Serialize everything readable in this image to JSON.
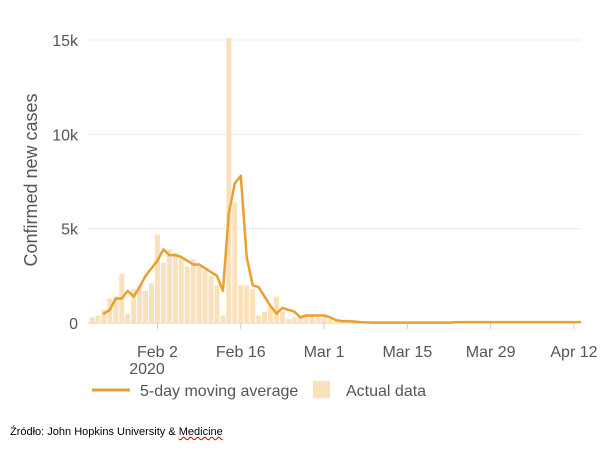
{
  "chart_data": {
    "type": "bar+line",
    "ylabel": "Confirmed new cases",
    "ylim": [
      0,
      15000
    ],
    "y_ticks": [
      0,
      5000,
      10000,
      15000
    ],
    "y_tick_labels": [
      "0",
      "5k",
      "10k",
      "15k"
    ],
    "x_start_date": "2020-01-22",
    "x_tick_labels": [
      "Feb 2",
      "Feb 16",
      "Mar 1",
      "Mar 15",
      "Mar 29",
      "Apr 12"
    ],
    "x_tick_dates": [
      "2020-02-02",
      "2020-02-16",
      "2020-03-01",
      "2020-03-15",
      "2020-03-29",
      "2020-04-12"
    ],
    "x_year_label": "2020",
    "grid": true,
    "legend_position": "bottom-left",
    "bar_color": "#fbe0bc",
    "line_color": "#e8a030",
    "series": [
      {
        "name": "Actual data",
        "kind": "bar",
        "dates": [
          "2020-01-22",
          "2020-01-23",
          "2020-01-24",
          "2020-01-25",
          "2020-01-26",
          "2020-01-27",
          "2020-01-28",
          "2020-01-29",
          "2020-01-30",
          "2020-01-31",
          "2020-02-01",
          "2020-02-02",
          "2020-02-03",
          "2020-02-04",
          "2020-02-05",
          "2020-02-06",
          "2020-02-07",
          "2020-02-08",
          "2020-02-09",
          "2020-02-10",
          "2020-02-11",
          "2020-02-12",
          "2020-02-13",
          "2020-02-14",
          "2020-02-15",
          "2020-02-16",
          "2020-02-17",
          "2020-02-18",
          "2020-02-19",
          "2020-02-20",
          "2020-02-21",
          "2020-02-22",
          "2020-02-23",
          "2020-02-24",
          "2020-02-25",
          "2020-02-26",
          "2020-02-27",
          "2020-02-28",
          "2020-02-29",
          "2020-03-01",
          "2020-03-02",
          "2020-03-03",
          "2020-03-04",
          "2020-03-05",
          "2020-03-06",
          "2020-03-07",
          "2020-03-08",
          "2020-03-09",
          "2020-03-10",
          "2020-03-11",
          "2020-03-12",
          "2020-03-13",
          "2020-03-14",
          "2020-03-15",
          "2020-03-16",
          "2020-03-17",
          "2020-03-18",
          "2020-03-19",
          "2020-03-20",
          "2020-03-21",
          "2020-03-22",
          "2020-03-23",
          "2020-03-24",
          "2020-03-25",
          "2020-03-26",
          "2020-03-27",
          "2020-03-28",
          "2020-03-29",
          "2020-03-30",
          "2020-03-31",
          "2020-04-01",
          "2020-04-02",
          "2020-04-03",
          "2020-04-04",
          "2020-04-05",
          "2020-04-06",
          "2020-04-07",
          "2020-04-08",
          "2020-04-09",
          "2020-04-10",
          "2020-04-11",
          "2020-04-12",
          "2020-04-13"
        ],
        "values": [
          300,
          400,
          700,
          1300,
          1400,
          2600,
          500,
          1800,
          2000,
          1700,
          2100,
          4700,
          3200,
          3900,
          3700,
          3500,
          3000,
          3400,
          3000,
          2800,
          2500,
          2000,
          400,
          15100,
          6400,
          2000,
          2000,
          1800,
          400,
          600,
          900,
          1400,
          600,
          200,
          300,
          400,
          400,
          400,
          300,
          300,
          200,
          100,
          100,
          100,
          50,
          50,
          50,
          20,
          20,
          20,
          20,
          20,
          20,
          20,
          20,
          20,
          20,
          20,
          20,
          20,
          20,
          50,
          50,
          50,
          50,
          50,
          50,
          50,
          50,
          50,
          50,
          50,
          50,
          50,
          50,
          50,
          50,
          50,
          50,
          50,
          50,
          50,
          50
        ]
      },
      {
        "name": "5-day moving average",
        "kind": "line",
        "dates": [
          "2020-01-22",
          "2020-01-23",
          "2020-01-24",
          "2020-01-25",
          "2020-01-26",
          "2020-01-27",
          "2020-01-28",
          "2020-01-29",
          "2020-01-30",
          "2020-01-31",
          "2020-02-01",
          "2020-02-02",
          "2020-02-03",
          "2020-02-04",
          "2020-02-05",
          "2020-02-06",
          "2020-02-07",
          "2020-02-08",
          "2020-02-09",
          "2020-02-10",
          "2020-02-11",
          "2020-02-12",
          "2020-02-13",
          "2020-02-14",
          "2020-02-15",
          "2020-02-16",
          "2020-02-17",
          "2020-02-18",
          "2020-02-19",
          "2020-02-20",
          "2020-02-21",
          "2020-02-22",
          "2020-02-23",
          "2020-02-24",
          "2020-02-25",
          "2020-02-26",
          "2020-02-27",
          "2020-02-28",
          "2020-02-29",
          "2020-03-01",
          "2020-03-02",
          "2020-03-03",
          "2020-03-04",
          "2020-03-05",
          "2020-03-06",
          "2020-03-07",
          "2020-03-08",
          "2020-03-09",
          "2020-03-10",
          "2020-03-11",
          "2020-03-12",
          "2020-03-13",
          "2020-03-14",
          "2020-03-15",
          "2020-03-16",
          "2020-03-17",
          "2020-03-18",
          "2020-03-19",
          "2020-03-20",
          "2020-03-21",
          "2020-03-22",
          "2020-03-23",
          "2020-03-24",
          "2020-03-25",
          "2020-03-26",
          "2020-03-27",
          "2020-03-28",
          "2020-03-29",
          "2020-03-30",
          "2020-03-31",
          "2020-04-01",
          "2020-04-02",
          "2020-04-03",
          "2020-04-04",
          "2020-04-05",
          "2020-04-06",
          "2020-04-07",
          "2020-04-08",
          "2020-04-09",
          "2020-04-10",
          "2020-04-11",
          "2020-04-12",
          "2020-04-13"
        ],
        "values": [
          null,
          null,
          500,
          700,
          1300,
          1300,
          1700,
          1400,
          1900,
          2500,
          2900,
          3300,
          3900,
          3600,
          3600,
          3500,
          3300,
          3100,
          3100,
          2900,
          2700,
          2500,
          1700,
          5800,
          7400,
          7800,
          3500,
          2000,
          1900,
          1400,
          900,
          500,
          800,
          700,
          600,
          300,
          400,
          400,
          400,
          400,
          300,
          150,
          100,
          100,
          80,
          50,
          30,
          20,
          20,
          20,
          20,
          20,
          20,
          20,
          20,
          20,
          20,
          20,
          20,
          20,
          20,
          40,
          50,
          50,
          50,
          50,
          50,
          50,
          50,
          50,
          50,
          50,
          50,
          50,
          50,
          50,
          50,
          50,
          50,
          50,
          50,
          50,
          50
        ]
      }
    ]
  },
  "source": {
    "prefix": "Źródło: John Hopkins University & ",
    "suffix": "Medicine"
  }
}
